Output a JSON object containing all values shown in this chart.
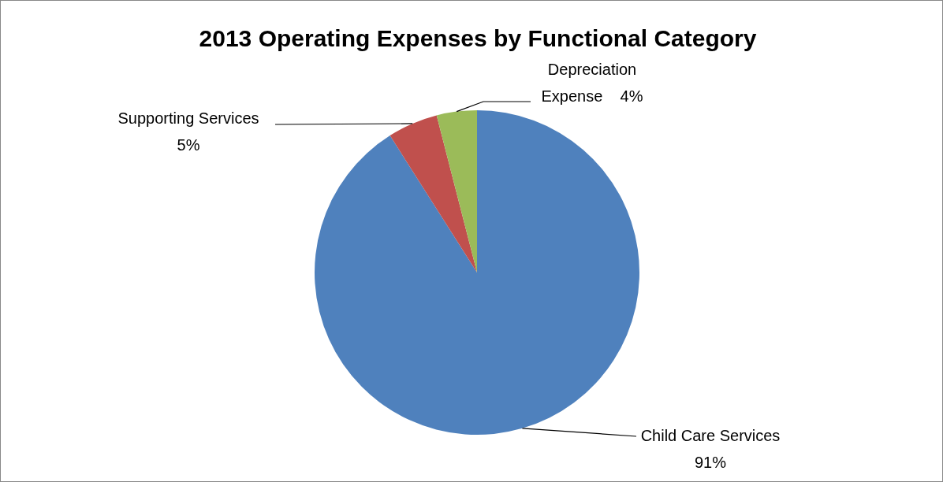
{
  "chart_data": {
    "type": "pie",
    "title": "2013 Operating Expenses by Functional Category",
    "categories": [
      "Child Care Services",
      "Supporting Services",
      "Depreciation Expense"
    ],
    "values": [
      91,
      5,
      4
    ],
    "value_labels": [
      "91%",
      "5%",
      "4%"
    ],
    "colors": [
      "#4f81bd",
      "#c0504d",
      "#9bbb59"
    ],
    "legend": false
  }
}
